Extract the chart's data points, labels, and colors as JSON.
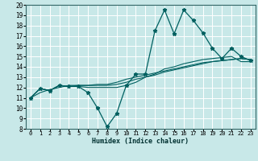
{
  "title": "",
  "xlabel": "Humidex (Indice chaleur)",
  "ylabel": "",
  "bg_color": "#c8e8e8",
  "grid_color": "#ffffff",
  "line_color": "#006060",
  "xlim": [
    -0.5,
    23.5
  ],
  "ylim": [
    8,
    20
  ],
  "xticks": [
    0,
    1,
    2,
    3,
    4,
    5,
    6,
    7,
    8,
    9,
    10,
    11,
    12,
    13,
    14,
    15,
    16,
    17,
    18,
    19,
    20,
    21,
    22,
    23
  ],
  "yticks": [
    8,
    9,
    10,
    11,
    12,
    13,
    14,
    15,
    16,
    17,
    18,
    19,
    20
  ],
  "series": [
    [
      11.0,
      11.9,
      11.7,
      12.2,
      12.1,
      12.1,
      11.5,
      10.0,
      8.2,
      9.5,
      12.2,
      13.3,
      13.3,
      17.5,
      19.5,
      17.2,
      19.5,
      18.5,
      17.3,
      15.8,
      14.8,
      15.8,
      15.0,
      14.6
    ],
    [
      11.0,
      11.9,
      11.7,
      12.2,
      12.1,
      12.1,
      12.0,
      12.0,
      12.0,
      12.0,
      12.2,
      12.5,
      13.0,
      13.3,
      13.8,
      14.0,
      14.3,
      14.5,
      14.7,
      14.8,
      14.9,
      15.0,
      14.5,
      14.5
    ],
    [
      11.0,
      11.5,
      11.8,
      12.0,
      12.2,
      12.2,
      12.2,
      12.3,
      12.3,
      12.5,
      12.8,
      13.0,
      13.2,
      13.4,
      13.6,
      13.8,
      14.0,
      14.2,
      14.4,
      14.5,
      14.6,
      14.7,
      14.8,
      14.7
    ],
    [
      11.0,
      11.9,
      11.7,
      12.2,
      12.1,
      12.2,
      12.2,
      12.2,
      12.2,
      12.3,
      12.5,
      12.8,
      13.0,
      13.2,
      13.5,
      13.7,
      13.9,
      14.1,
      14.3,
      14.5,
      14.6,
      14.7,
      14.8,
      14.7
    ]
  ]
}
